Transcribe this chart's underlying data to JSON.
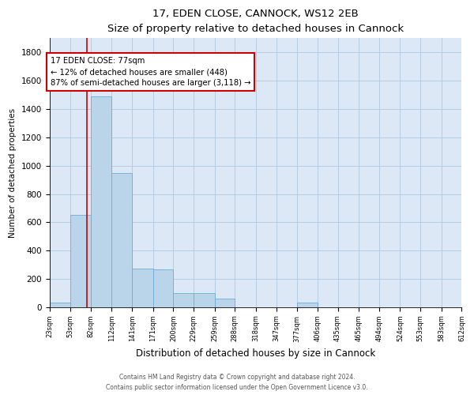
{
  "title": "17, EDEN CLOSE, CANNOCK, WS12 2EB",
  "subtitle": "Size of property relative to detached houses in Cannock",
  "xlabel": "Distribution of detached houses by size in Cannock",
  "ylabel": "Number of detached properties",
  "bar_color": "#bad4ea",
  "bar_edge_color": "#6aaed6",
  "plot_bg_color": "#dce8f5",
  "fig_bg_color": "#ffffff",
  "grid_color": "#b0c8e0",
  "bins": [
    23,
    53,
    82,
    112,
    141,
    171,
    200,
    229,
    259,
    288,
    318,
    347,
    377,
    406,
    435,
    465,
    494,
    524,
    553,
    583,
    612
  ],
  "counts": [
    35,
    650,
    1490,
    950,
    270,
    265,
    100,
    100,
    60,
    0,
    0,
    0,
    35,
    0,
    0,
    0,
    0,
    0,
    0,
    0
  ],
  "property_size": 77,
  "vline_color": "#cc0000",
  "annotation_text": "17 EDEN CLOSE: 77sqm\n← 12% of detached houses are smaller (448)\n87% of semi-detached houses are larger (3,118) →",
  "annotation_box_color": "#cc0000",
  "ylim": [
    0,
    1900
  ],
  "yticks": [
    0,
    200,
    400,
    600,
    800,
    1000,
    1200,
    1400,
    1600,
    1800
  ],
  "footer_line1": "Contains HM Land Registry data © Crown copyright and database right 2024.",
  "footer_line2": "Contains public sector information licensed under the Open Government Licence v3.0."
}
